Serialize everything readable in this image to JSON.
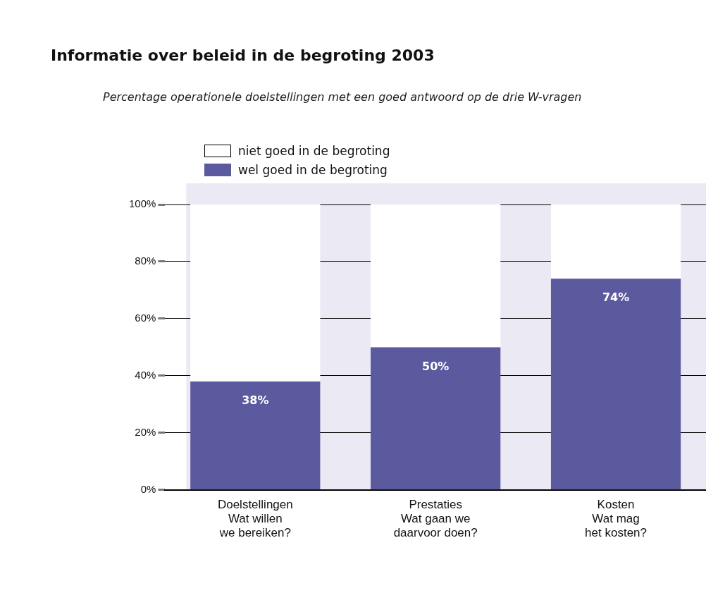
{
  "chart_data": {
    "type": "bar",
    "title": "Informatie over beleid in de begroting 2003",
    "subtitle": "Percentage operationele doelstellingen met een goed antwoord op de drie W-vragen",
    "categories": [
      "Doelstellingen\nWat willen\nwe bereiken?",
      "Prestaties\nWat gaan we\ndaarvoor doen?",
      "Kosten\nWat mag\nhet kosten?"
    ],
    "stacked": true,
    "series": [
      {
        "name": "wel goed in de begroting",
        "color": "#5b5a9f",
        "values": [
          38,
          50,
          74
        ],
        "value_labels": [
          "38%",
          "50%",
          "74%"
        ]
      },
      {
        "name": "niet goed in de begroting",
        "color": "#ffffff",
        "values": [
          62,
          50,
          26
        ]
      }
    ],
    "ylim": [
      0,
      100
    ],
    "yticks": [
      {
        "value": 0,
        "label": "0%"
      },
      {
        "value": 20,
        "label": "20%"
      },
      {
        "value": 40,
        "label": "40%"
      },
      {
        "value": 60,
        "label": "60%"
      },
      {
        "value": 80,
        "label": "80%"
      },
      {
        "value": 100,
        "label": "100%"
      }
    ],
    "grid": "y",
    "legend": "top left"
  }
}
